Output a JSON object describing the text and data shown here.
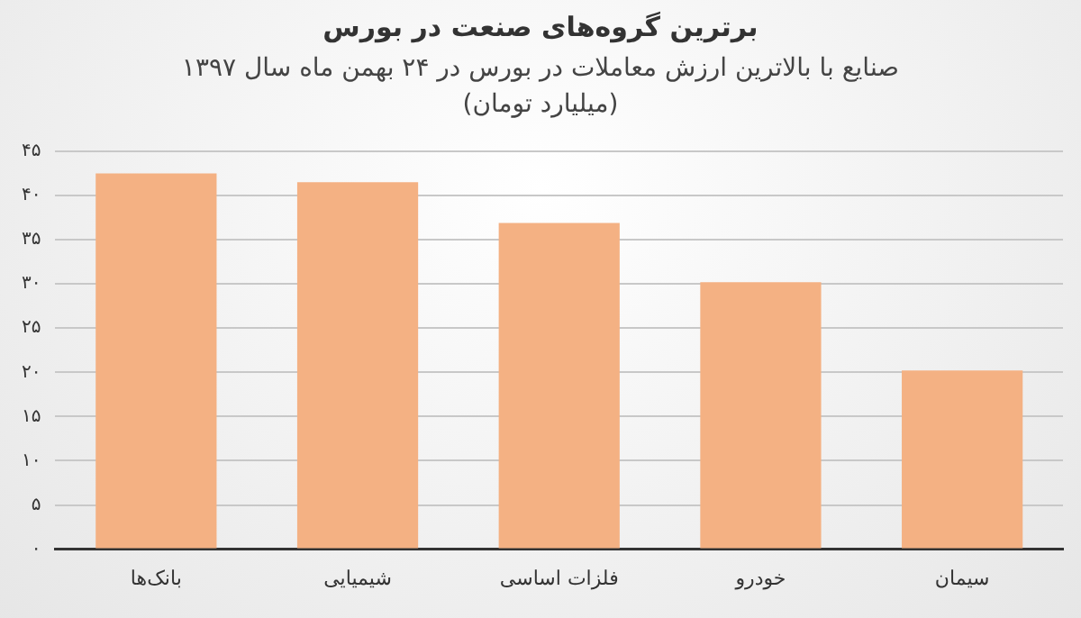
{
  "chart_data": {
    "type": "bar",
    "title": "برترین گروه‌های صنعت در بورس",
    "subtitle": "صنایع با بالاترین ارزش معاملات در بورس در ۲۴ بهمن ماه سال ۱۳۹۷ (میلیارد تومان)",
    "categories": [
      "بانک‌ها",
      "شیمیایی",
      "فلزات اساسی",
      "خودرو",
      "سیمان"
    ],
    "values": [
      42.5,
      41.5,
      36.9,
      30.2,
      20.2
    ],
    "color": "#f4b183",
    "ylim": [
      0,
      45
    ],
    "yticks": [
      {
        "value": 0,
        "label": "۰"
      },
      {
        "value": 5,
        "label": "۵"
      },
      {
        "value": 10,
        "label": "۱۰"
      },
      {
        "value": 15,
        "label": "۱۵"
      },
      {
        "value": 20,
        "label": "۲۰"
      },
      {
        "value": 25,
        "label": "۲۵"
      },
      {
        "value": 30,
        "label": "۳۰"
      },
      {
        "value": 35,
        "label": "۳۵"
      },
      {
        "value": 40,
        "label": "۴۰"
      },
      {
        "value": 45,
        "label": "۴۵"
      }
    ],
    "grid": "y",
    "legend": false
  }
}
